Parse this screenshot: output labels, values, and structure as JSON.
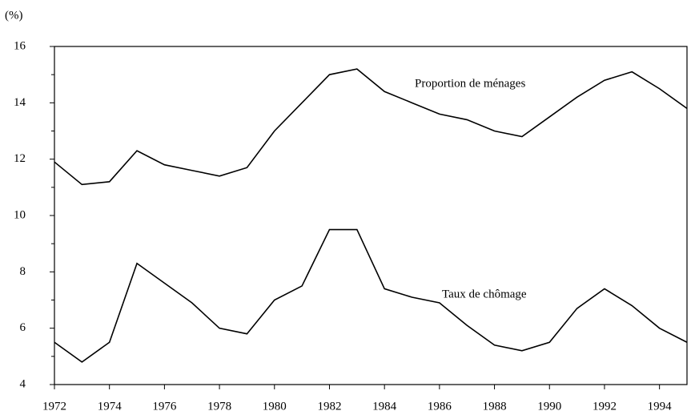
{
  "chart_data": {
    "type": "line",
    "unit_label": "(%)",
    "x": [
      1972,
      1973,
      1974,
      1975,
      1976,
      1977,
      1978,
      1979,
      1980,
      1981,
      1982,
      1983,
      1984,
      1985,
      1986,
      1987,
      1988,
      1989,
      1990,
      1991,
      1992,
      1993,
      1994,
      1995
    ],
    "series": [
      {
        "name": "Proportion de ménages",
        "color": "#000000",
        "values": [
          11.9,
          11.1,
          11.2,
          12.3,
          11.8,
          11.6,
          11.4,
          11.7,
          13.0,
          14.0,
          15.0,
          15.2,
          14.4,
          14.0,
          13.6,
          13.4,
          13.0,
          12.8,
          13.5,
          14.2,
          14.8,
          15.1,
          14.5,
          13.8
        ]
      },
      {
        "name": "Taux de chômage",
        "color": "#000000",
        "values": [
          5.5,
          4.8,
          5.5,
          8.3,
          7.6,
          6.9,
          6.0,
          5.8,
          7.0,
          7.5,
          9.5,
          9.5,
          7.4,
          7.1,
          6.9,
          6.1,
          5.4,
          5.2,
          5.5,
          6.7,
          7.4,
          6.8,
          6.0,
          5.5
        ]
      }
    ],
    "xlim": [
      1972,
      1995
    ],
    "xticks": [
      1972,
      1974,
      1976,
      1978,
      1980,
      1982,
      1984,
      1986,
      1988,
      1990,
      1992,
      1994
    ],
    "ylim": [
      4,
      16
    ],
    "yticks": [
      4,
      6,
      8,
      10,
      12,
      14,
      16
    ],
    "grid": false
  }
}
